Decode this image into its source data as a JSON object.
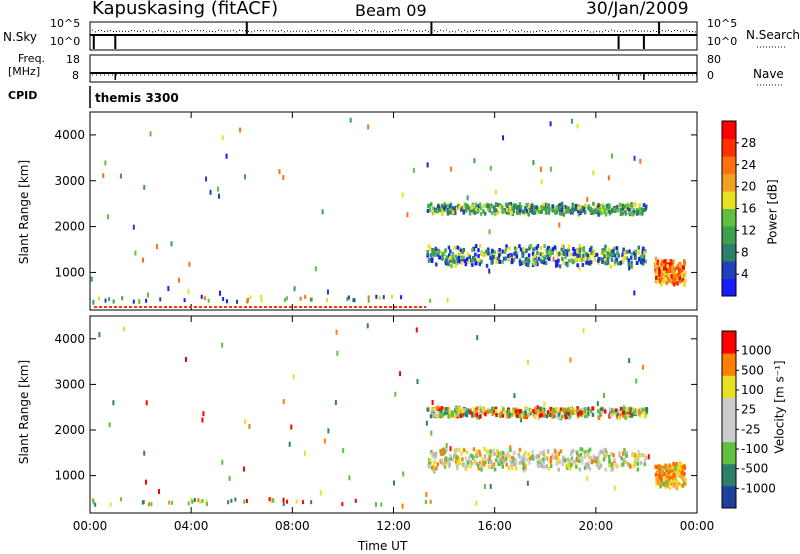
{
  "header": {
    "station": "Kapuskasing (fitACF)",
    "beam": "Beam 09",
    "date": "30/Jan/2009"
  },
  "left_labels": {
    "nsky": "N.Sky",
    "freq_line1": "Freq.",
    "freq_line2": "[MHz]",
    "cpid": "CPID"
  },
  "right_labels": {
    "nsearch": "N.Search",
    "nave": "Nave"
  },
  "cpid_value": "themis 3300",
  "chart_data": [
    {
      "type": "line",
      "name": "noise panel",
      "ylabel_left": "N.Sky",
      "ylabel_right": "N.Search",
      "yticks_left": [
        "10^5",
        "10^0"
      ],
      "yticks_right": [
        "10^5",
        "10^0"
      ]
    },
    {
      "type": "line",
      "name": "frequency panel",
      "ylabel_left": "Freq. [MHz]",
      "yticks_left": [
        "18",
        "8"
      ],
      "ylabel_right": "Nave",
      "yticks_right": [
        "80",
        "0"
      ]
    },
    {
      "type": "heatmap",
      "name": "power",
      "xlabel": "Time UT",
      "ylabel": "Slant Range [km]",
      "xlim_hours": [
        0,
        24
      ],
      "ylim_km": [
        180,
        4500
      ],
      "yticks": [
        1000,
        2000,
        3000,
        4000
      ],
      "colorbar": {
        "label": "Power [dB]",
        "ticks": [
          "4",
          "8",
          "12",
          "16",
          "20",
          "24",
          "28"
        ],
        "colors": [
          "#1a1aff",
          "#2040c0",
          "#2d7f6a",
          "#3f9f50",
          "#60c040",
          "#e8e020",
          "#f0a020",
          "#ff7010",
          "#ff3000",
          "#ff0000"
        ]
      },
      "echo_regions": [
        {
          "hours": [
            13.3,
            22.0
          ],
          "range_km": [
            1150,
            1650
          ],
          "level": "mid"
        },
        {
          "hours": [
            13.3,
            22.0
          ],
          "range_km": [
            2300,
            2550
          ],
          "level": "low"
        },
        {
          "hours": [
            22.3,
            23.5
          ],
          "range_km": [
            750,
            1350
          ],
          "level": "high"
        }
      ]
    },
    {
      "type": "heatmap",
      "name": "velocity",
      "xlabel": "Time UT",
      "ylabel": "Slant Range [km]",
      "xlim_hours": [
        0,
        24
      ],
      "ylim_km": [
        180,
        4500
      ],
      "yticks": [
        1000,
        2000,
        3000,
        4000
      ],
      "colorbar": {
        "label": "Velocity [m s⁻¹]",
        "ticks": [
          "1000",
          "500",
          "100",
          "25",
          "-25",
          "-100",
          "-500",
          "-1000"
        ],
        "colors": [
          "#2040a0",
          "#2d7f6a",
          "#60c040",
          "#cccccc",
          "#cccccc",
          "#e8e020",
          "#ff8000",
          "#ff0000"
        ]
      },
      "echo_regions": [
        {
          "hours": [
            13.3,
            22.0
          ],
          "range_km": [
            1150,
            1650
          ],
          "level": "grey"
        },
        {
          "hours": [
            13.3,
            22.0
          ],
          "range_km": [
            2300,
            2550
          ],
          "level": "mixed"
        },
        {
          "hours": [
            22.3,
            23.5
          ],
          "range_km": [
            750,
            1350
          ],
          "level": "orange"
        }
      ]
    }
  ],
  "x_axis": {
    "ticks": [
      "00:00",
      "04:00",
      "08:00",
      "12:00",
      "16:00",
      "20:00",
      "00:00"
    ],
    "label": "Time UT"
  },
  "colors": {
    "axis": "#000000"
  }
}
